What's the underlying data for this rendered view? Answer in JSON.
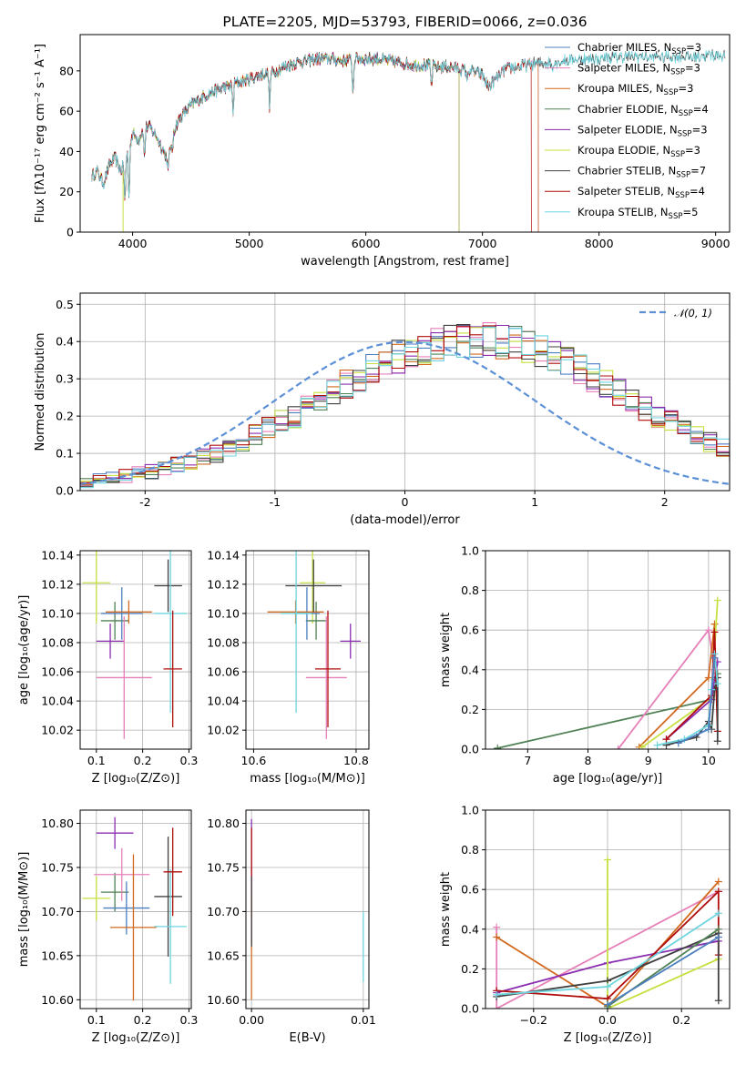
{
  "colors": {
    "cm": "#4c7fc0",
    "sm": "#e67fb8",
    "km": "#d2691e",
    "ce": "#4f8154",
    "se": "#8a2db0",
    "ke": "#c7e040",
    "cs": "#404040",
    "ss": "#b00c0c",
    "ks": "#6ed5df",
    "normal": "#5b8fd6",
    "grid": "#b0b0b0"
  },
  "chart_data": [
    {
      "id": "spectrum",
      "type": "line",
      "title": "PLATE=2205, MJD=53793, FIBERID=0066, z=0.036",
      "xlabel": "wavelength [Angstrom, rest frame]",
      "ylabel": "Flux [fλ10⁻¹⁷ erg cm⁻² s⁻¹ A⁻¹]",
      "xlim": [
        3550,
        9120
      ],
      "ylim": [
        0,
        98
      ],
      "xticks": [
        4000,
        5000,
        6000,
        7000,
        8000,
        9000
      ],
      "yticks": [
        0,
        20,
        40,
        60,
        80
      ],
      "grid": false,
      "legend_position": "top-right",
      "x_range_data": [
        3650,
        9080
      ],
      "envelope": {
        "x": [
          3650,
          3700,
          3750,
          3800,
          3850,
          3900,
          3950,
          4000,
          4050,
          4100,
          4150,
          4200,
          4250,
          4300,
          4350,
          4400,
          4500,
          4600,
          4700,
          4800,
          4900,
          5000,
          5100,
          5200,
          5300,
          5400,
          5500,
          5600,
          5700,
          5800,
          5900,
          6000,
          6100,
          6200,
          6300,
          6400,
          6500,
          6600,
          6700,
          6800,
          6900,
          7000,
          7050,
          7100,
          7200,
          7300,
          7400,
          7500,
          7600,
          7700,
          7800,
          7900,
          8000,
          8200,
          8400,
          8600,
          8800,
          9000,
          9080
        ],
        "y": [
          28,
          30,
          24,
          33,
          37,
          30,
          38,
          49,
          46,
          52,
          52,
          48,
          42,
          36,
          50,
          56,
          63,
          67,
          70,
          72,
          74,
          76,
          78,
          79,
          82,
          84,
          85,
          86,
          86,
          85,
          86,
          86,
          86,
          85,
          84,
          83,
          83,
          82,
          82,
          81,
          80,
          78,
          72,
          75,
          81,
          82,
          83,
          84,
          84,
          85,
          86,
          86,
          86,
          87,
          87,
          87,
          87,
          88,
          88
        ]
      },
      "dips": [
        {
          "x": 3934,
          "y": 12
        },
        {
          "x": 3969,
          "y": 15
        },
        {
          "x": 4102,
          "y": 35
        },
        {
          "x": 4304,
          "y": 30
        },
        {
          "x": 4340,
          "y": 38
        },
        {
          "x": 4861,
          "y": 58
        },
        {
          "x": 5175,
          "y": 60
        },
        {
          "x": 5890,
          "y": 66
        },
        {
          "x": 6563,
          "y": 70
        },
        {
          "x": 6870,
          "y": 74
        },
        {
          "x": 7600,
          "y": 80
        }
      ],
      "series": [
        {
          "name": "Chabrier MILES, N_SSP=3",
          "legend_main": "Chabrier MILES, N",
          "legend_sub": "SSP",
          "legend_tail": "=3",
          "color_key": "cm",
          "x_end": 7480
        },
        {
          "name": "Salpeter MILES, N_SSP=3",
          "legend_main": "Salpeter MILES, N",
          "legend_sub": "SSP",
          "legend_tail": "=3",
          "color_key": "sm",
          "x_end": 7480
        },
        {
          "name": "Kroupa MILES, N_SSP=3",
          "legend_main": "Kroupa MILES, N",
          "legend_sub": "SSP",
          "legend_tail": "=3",
          "color_key": "km",
          "x_end": 7480
        },
        {
          "name": "Chabrier ELODIE, N_SSP=4",
          "legend_main": "Chabrier ELODIE, N",
          "legend_sub": "SSP",
          "legend_tail": "=4",
          "color_key": "ce",
          "x_end": 6800
        },
        {
          "name": "Salpeter ELODIE, N_SSP=3",
          "legend_main": "Salpeter ELODIE, N",
          "legend_sub": "SSP",
          "legend_tail": "=3",
          "color_key": "se",
          "x_end": 6800
        },
        {
          "name": "Kroupa ELODIE, N_SSP=3",
          "legend_main": "Kroupa ELODIE, N",
          "legend_sub": "SSP",
          "legend_tail": "=3",
          "color_key": "ke",
          "x_end": 6800
        },
        {
          "name": "Chabrier STELIB, N_SSP=7",
          "legend_main": "Chabrier STELIB, N",
          "legend_sub": "SSP",
          "legend_tail": "=7",
          "color_key": "cs",
          "x_end": 9080
        },
        {
          "name": "Salpeter STELIB, N_SSP=4",
          "legend_main": "Salpeter STELIB, N",
          "legend_sub": "SSP",
          "legend_tail": "=4",
          "color_key": "ss",
          "x_end": 7420
        },
        {
          "name": "Kroupa STELIB, N_SSP=5",
          "legend_main": "Kroupa STELIB, N",
          "legend_sub": "SSP",
          "legend_tail": "=5",
          "color_key": "ks",
          "x_end": 9080
        }
      ]
    },
    {
      "id": "residuals",
      "type": "histogram",
      "xlabel": "(data-model)/error",
      "ylabel": "Normed distribution",
      "xlim": [
        -2.5,
        2.5
      ],
      "ylim": [
        0,
        0.53
      ],
      "xticks": [
        -2,
        -1,
        0,
        1,
        2
      ],
      "yticks": [
        0.0,
        0.1,
        0.2,
        0.3,
        0.4,
        0.5
      ],
      "grid": true,
      "legend_position": "top-right",
      "legend_label": "𝒩(0, 1)",
      "bin_width": 0.1,
      "bins_from": -2.5,
      "mean_values": [
        0.025,
        0.03,
        0.035,
        0.04,
        0.045,
        0.05,
        0.06,
        0.07,
        0.08,
        0.09,
        0.1,
        0.115,
        0.13,
        0.15,
        0.17,
        0.185,
        0.2,
        0.22,
        0.24,
        0.265,
        0.285,
        0.305,
        0.325,
        0.345,
        0.36,
        0.375,
        0.385,
        0.395,
        0.4,
        0.405,
        0.405,
        0.405,
        0.4,
        0.395,
        0.385,
        0.375,
        0.36,
        0.345,
        0.325,
        0.305,
        0.285,
        0.265,
        0.24,
        0.22,
        0.2,
        0.185,
        0.17,
        0.15,
        0.13,
        0.115,
        0.1,
        0.09,
        0.08,
        0.07,
        0.06,
        0.05,
        0.045,
        0.04,
        0.035,
        0.03
      ],
      "spread": 0.04
    },
    {
      "id": "age-vs-Z",
      "type": "scatter",
      "xlabel": "Z [log₁₀(Z/Z⊙)]",
      "ylabel": "age  [log₁₀(age/yr)]",
      "xlim": [
        0.065,
        0.305
      ],
      "ylim": [
        10.007,
        10.143
      ],
      "xticks": [
        0.1,
        0.2,
        0.3
      ],
      "yticks": [
        10.02,
        10.04,
        10.06,
        10.08,
        10.1,
        10.12,
        10.14
      ],
      "grid": true,
      "points": [
        {
          "k": "ke",
          "x": 0.1,
          "y": 10.121,
          "ex": 0.03,
          "ey": 0.028
        },
        {
          "k": "se",
          "x": 0.13,
          "y": 10.081,
          "ex": 0.03,
          "ey": 0.012
        },
        {
          "k": "ce",
          "x": 0.14,
          "y": 10.095,
          "ex": 0.03,
          "ey": 0.013
        },
        {
          "k": "sm",
          "x": 0.16,
          "y": 10.056,
          "ex": 0.06,
          "ey": 0.042
        },
        {
          "k": "cm",
          "x": 0.155,
          "y": 10.1,
          "ex": 0.045,
          "ey": 0.018
        },
        {
          "k": "km",
          "x": 0.17,
          "y": 10.101,
          "ex": 0.05,
          "ey": 0.008
        },
        {
          "k": "cs",
          "x": 0.255,
          "y": 10.119,
          "ex": 0.03,
          "ey": 0.018
        },
        {
          "k": "ks",
          "x": 0.26,
          "y": 10.1,
          "ex": 0.035,
          "ey": 0.068
        },
        {
          "k": "ss",
          "x": 0.265,
          "y": 10.062,
          "ex": 0.02,
          "ey": 0.04
        }
      ]
    },
    {
      "id": "age-vs-mass",
      "type": "scatter",
      "xlabel": "mass [log₁₀(M/M⊙)]",
      "ylabel": "",
      "xlim": [
        10.585,
        10.825
      ],
      "ylim": [
        10.007,
        10.143
      ],
      "xticks": [
        10.6,
        10.8
      ],
      "yticks": [
        10.02,
        10.04,
        10.06,
        10.08,
        10.1,
        10.12,
        10.14
      ],
      "grid": true,
      "points": [
        {
          "k": "ke",
          "x": 10.715,
          "y": 10.121,
          "ex": 0.025,
          "ey": 0.028
        },
        {
          "k": "se",
          "x": 10.789,
          "y": 10.081,
          "ex": 0.02,
          "ey": 0.012
        },
        {
          "k": "ce",
          "x": 10.722,
          "y": 10.095,
          "ex": 0.02,
          "ey": 0.013
        },
        {
          "k": "sm",
          "x": 10.742,
          "y": 10.056,
          "ex": 0.04,
          "ey": 0.042
        },
        {
          "k": "cm",
          "x": 10.704,
          "y": 10.1,
          "ex": 0.025,
          "ey": 0.018
        },
        {
          "k": "km",
          "x": 10.682,
          "y": 10.101,
          "ex": 0.055,
          "ey": 0.008
        },
        {
          "k": "cs",
          "x": 10.717,
          "y": 10.119,
          "ex": 0.055,
          "ey": 0.018
        },
        {
          "k": "ks",
          "x": 10.683,
          "y": 10.1,
          "ex": 0.03,
          "ey": 0.068
        },
        {
          "k": "ss",
          "x": 10.745,
          "y": 10.062,
          "ex": 0.025,
          "ey": 0.04
        }
      ]
    },
    {
      "id": "mass-weight-vs-age",
      "type": "line",
      "xlabel": "age  [log₁₀(age/yr)]",
      "ylabel": "mass weight",
      "xlim": [
        6.3,
        10.35
      ],
      "ylim": [
        0,
        1
      ],
      "xticks": [
        7,
        8,
        9,
        10
      ],
      "yticks": [
        0.0,
        0.2,
        0.4,
        0.6,
        0.8,
        1.0
      ],
      "grid": true,
      "series": [
        {
          "k": "ce",
          "pts": [
            [
              6.5,
              0.005
            ],
            [
              10.05,
              0.25
            ],
            [
              10.1,
              0.35
            ],
            [
              10.15,
              0.38
            ]
          ]
        },
        {
          "k": "sm",
          "pts": [
            [
              8.5,
              0.0
            ],
            [
              10.0,
              0.6
            ],
            [
              10.1,
              0.4
            ]
          ]
        },
        {
          "k": "km",
          "pts": [
            [
              8.85,
              0.01
            ],
            [
              10.0,
              0.36
            ],
            [
              10.1,
              0.63
            ]
          ]
        },
        {
          "k": "ke",
          "pts": [
            [
              8.9,
              0.01
            ],
            [
              10.05,
              0.26
            ],
            [
              10.15,
              0.75
            ]
          ]
        },
        {
          "k": "se",
          "pts": [
            [
              9.3,
              0.05
            ],
            [
              10.05,
              0.25
            ],
            [
              10.15,
              0.44
            ]
          ]
        },
        {
          "k": "ss",
          "pts": [
            [
              9.3,
              0.05
            ],
            [
              10.05,
              0.27
            ],
            [
              10.1,
              0.59
            ],
            [
              10.15,
              0.09
            ]
          ]
        },
        {
          "k": "cs",
          "pts": [
            [
              9.3,
              0.02
            ],
            [
              9.8,
              0.06
            ],
            [
              10.0,
              0.14
            ],
            [
              10.05,
              0.1
            ],
            [
              10.1,
              0.3
            ],
            [
              10.15,
              0.36
            ],
            [
              10.15,
              0.04
            ]
          ]
        },
        {
          "k": "ks",
          "pts": [
            [
              9.15,
              0.02
            ],
            [
              9.6,
              0.05
            ],
            [
              10.0,
              0.12
            ],
            [
              10.05,
              0.3
            ],
            [
              10.1,
              0.48
            ],
            [
              10.15,
              0.33
            ]
          ]
        },
        {
          "k": "cm",
          "pts": [
            [
              9.5,
              0.03
            ],
            [
              10.0,
              0.1
            ],
            [
              10.1,
              0.46
            ]
          ]
        }
      ]
    },
    {
      "id": "mass-vs-Z",
      "type": "scatter",
      "xlabel": "Z [log₁₀(Z/Z⊙)]",
      "ylabel": "mass [log₁₀(M/M⊙)]",
      "xlim": [
        0.065,
        0.305
      ],
      "ylim": [
        10.59,
        10.815
      ],
      "xticks": [
        0.1,
        0.2,
        0.3
      ],
      "yticks": [
        10.6,
        10.65,
        10.7,
        10.75,
        10.8
      ],
      "grid": true,
      "points": [
        {
          "k": "ke",
          "x": 0.1,
          "y": 10.715,
          "ex": 0.03,
          "ey": 0.025
        },
        {
          "k": "se",
          "x": 0.14,
          "y": 10.789,
          "ex": 0.04,
          "ey": 0.018
        },
        {
          "k": "ce",
          "x": 0.14,
          "y": 10.722,
          "ex": 0.03,
          "ey": 0.022
        },
        {
          "k": "sm",
          "x": 0.155,
          "y": 10.742,
          "ex": 0.06,
          "ey": 0.03
        },
        {
          "k": "cm",
          "x": 0.165,
          "y": 10.704,
          "ex": 0.05,
          "ey": 0.03
        },
        {
          "k": "km",
          "x": 0.18,
          "y": 10.682,
          "ex": 0.05,
          "ey": 0.083
        },
        {
          "k": "cs",
          "x": 0.255,
          "y": 10.717,
          "ex": 0.03,
          "ey": 0.068
        },
        {
          "k": "ks",
          "x": 0.26,
          "y": 10.683,
          "ex": 0.035,
          "ey": 0.065
        },
        {
          "k": "ss",
          "x": 0.265,
          "y": 10.745,
          "ex": 0.02,
          "ey": 0.05
        }
      ]
    },
    {
      "id": "mass-vs-ebv",
      "type": "scatter",
      "xlabel": "E(B-V)",
      "ylabel": "",
      "xlim": [
        -0.0005,
        0.0105
      ],
      "ylim": [
        10.59,
        10.815
      ],
      "xticks": [
        0.0,
        0.01
      ],
      "xtick_labels": [
        "0.00",
        "0.01"
      ],
      "yticks": [
        10.6,
        10.65,
        10.7,
        10.75,
        10.8
      ],
      "grid": true,
      "points": [
        {
          "k": "se",
          "x": 0.0,
          "y": 10.735,
          "ex": 0,
          "ey": 0.07
        },
        {
          "k": "ss",
          "x": 0.0,
          "y": 10.745,
          "ex": 0,
          "ey": 0.05
        },
        {
          "k": "km",
          "x": 0.0,
          "y": 10.66,
          "ex": 0,
          "ey": 0.06
        },
        {
          "k": "cs",
          "x": 0.0,
          "y": 10.7,
          "ex": 0,
          "ey": 0.04
        },
        {
          "k": "ks",
          "x": 0.01,
          "y": 10.66,
          "ex": 0,
          "ey": 0.04
        }
      ]
    },
    {
      "id": "mass-weight-vs-Z",
      "type": "line",
      "xlabel": "Z [log₁₀(Z/Z⊙)]",
      "ylabel": "mass weight",
      "xlim": [
        -0.33,
        0.33
      ],
      "ylim": [
        0,
        1
      ],
      "xticks": [
        -0.2,
        0.0,
        0.2
      ],
      "xtick_labels": [
        "−0.2",
        "0.0",
        "0.2"
      ],
      "yticks": [
        0.0,
        0.2,
        0.4,
        0.6,
        0.8,
        1.0
      ],
      "grid": true,
      "series": [
        {
          "k": "sm",
          "pts": [
            [
              -0.3,
              0.41
            ],
            [
              -0.3,
              0.0
            ],
            [
              0.3,
              0.59
            ]
          ]
        },
        {
          "k": "km",
          "pts": [
            [
              -0.3,
              0.36
            ],
            [
              0.0,
              0.01
            ],
            [
              0.3,
              0.64
            ]
          ]
        },
        {
          "k": "se",
          "pts": [
            [
              -0.3,
              0.08
            ],
            [
              0.0,
              0.23
            ],
            [
              0.3,
              0.34
            ]
          ]
        },
        {
          "k": "ke",
          "pts": [
            [
              0.0,
              0.75
            ],
            [
              0.0,
              0.0
            ],
            [
              0.3,
              0.25
            ]
          ]
        },
        {
          "k": "ss",
          "pts": [
            [
              -0.3,
              0.09
            ],
            [
              0.0,
              0.05
            ],
            [
              0.3,
              0.59
            ],
            [
              0.3,
              0.27
            ]
          ]
        },
        {
          "k": "cs",
          "pts": [
            [
              -0.3,
              0.06
            ],
            [
              0.0,
              0.14
            ],
            [
              0.3,
              0.38
            ],
            [
              0.3,
              0.04
            ]
          ]
        },
        {
          "k": "ks",
          "pts": [
            [
              -0.3,
              0.07
            ],
            [
              0.0,
              0.11
            ],
            [
              0.3,
              0.48
            ]
          ]
        },
        {
          "k": "ce",
          "pts": [
            [
              0.0,
              0.01
            ],
            [
              0.3,
              0.4
            ]
          ]
        },
        {
          "k": "cm",
          "pts": [
            [
              0.0,
              0.02
            ],
            [
              0.3,
              0.36
            ]
          ]
        }
      ]
    }
  ]
}
